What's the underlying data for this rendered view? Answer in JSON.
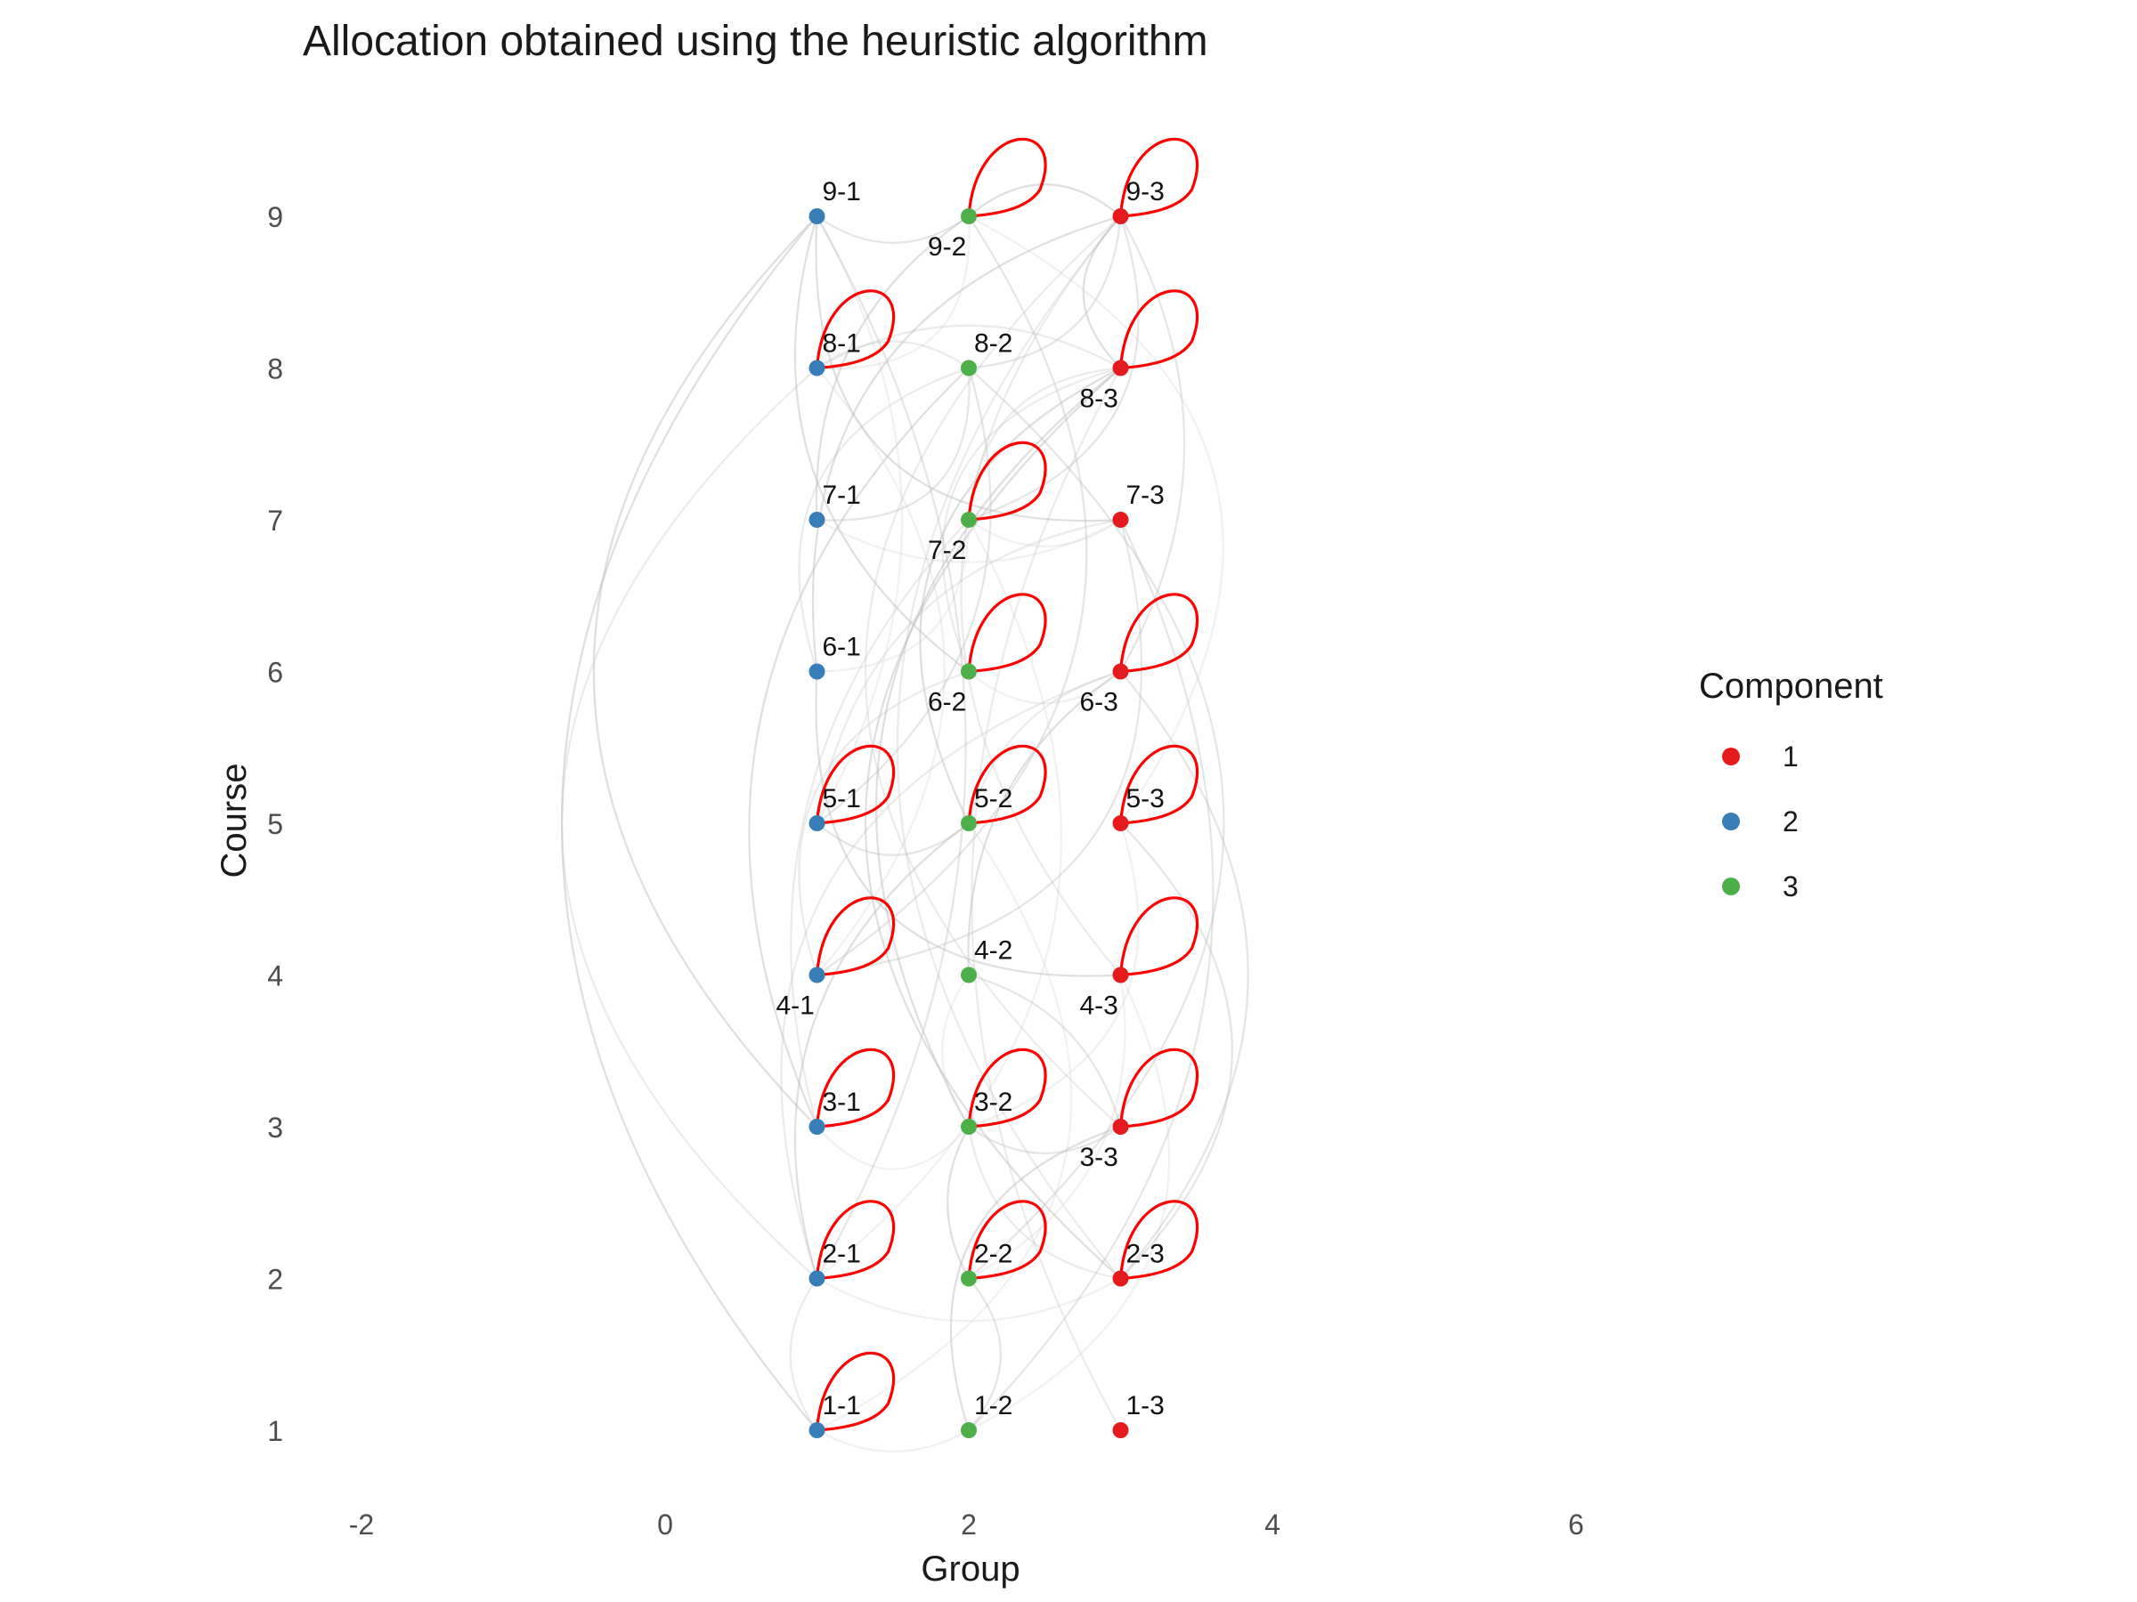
{
  "title": "Allocation obtained using the heuristic algorithm",
  "x_axis": {
    "label": "Group",
    "ticks": [
      "-2",
      "0",
      "2",
      "4",
      "6"
    ],
    "tick_values": [
      -2,
      0,
      2,
      4,
      6
    ],
    "range": [
      -2.2,
      6.6
    ]
  },
  "y_axis": {
    "label": "Course",
    "ticks": [
      "1",
      "2",
      "3",
      "4",
      "5",
      "6",
      "7",
      "8",
      "9"
    ],
    "tick_values": [
      1,
      2,
      3,
      4,
      5,
      6,
      7,
      8,
      9
    ],
    "range": [
      0.7,
      9.6
    ]
  },
  "legend": {
    "title": "Component",
    "placement": "right",
    "items": [
      {
        "label": "1",
        "color": "#E41A1C"
      },
      {
        "label": "2",
        "color": "#377EB8"
      },
      {
        "label": "3",
        "color": "#4DAF4A"
      }
    ]
  },
  "colors": {
    "self_loop": "#FF0000",
    "edge": "#BDBDBD",
    "1": "#E41A1C",
    "2": "#377EB8",
    "3": "#4DAF4A"
  },
  "nodes": [
    {
      "id": "1-1",
      "x": 1,
      "y": 1,
      "component": "2",
      "label_pos": "above",
      "self_loop": true
    },
    {
      "id": "1-2",
      "x": 2,
      "y": 1,
      "component": "3",
      "label_pos": "above",
      "self_loop": false
    },
    {
      "id": "1-3",
      "x": 3,
      "y": 1,
      "component": "1",
      "label_pos": "above",
      "self_loop": false
    },
    {
      "id": "2-1",
      "x": 1,
      "y": 2,
      "component": "2",
      "label_pos": "above",
      "self_loop": true
    },
    {
      "id": "2-2",
      "x": 2,
      "y": 2,
      "component": "3",
      "label_pos": "above",
      "self_loop": true
    },
    {
      "id": "2-3",
      "x": 3,
      "y": 2,
      "component": "1",
      "label_pos": "above",
      "self_loop": true
    },
    {
      "id": "3-1",
      "x": 1,
      "y": 3,
      "component": "2",
      "label_pos": "above",
      "self_loop": true
    },
    {
      "id": "3-2",
      "x": 2,
      "y": 3,
      "component": "3",
      "label_pos": "above",
      "self_loop": true
    },
    {
      "id": "3-3",
      "x": 3,
      "y": 3,
      "component": "1",
      "label_pos": "below",
      "self_loop": true
    },
    {
      "id": "4-1",
      "x": 1,
      "y": 4,
      "component": "2",
      "label_pos": "below",
      "self_loop": true
    },
    {
      "id": "4-2",
      "x": 2,
      "y": 4,
      "component": "3",
      "label_pos": "above",
      "self_loop": false
    },
    {
      "id": "4-3",
      "x": 3,
      "y": 4,
      "component": "1",
      "label_pos": "below",
      "self_loop": true
    },
    {
      "id": "5-1",
      "x": 1,
      "y": 5,
      "component": "2",
      "label_pos": "above",
      "self_loop": true
    },
    {
      "id": "5-2",
      "x": 2,
      "y": 5,
      "component": "3",
      "label_pos": "above",
      "self_loop": true
    },
    {
      "id": "5-3",
      "x": 3,
      "y": 5,
      "component": "1",
      "label_pos": "above",
      "self_loop": true
    },
    {
      "id": "6-1",
      "x": 1,
      "y": 6,
      "component": "2",
      "label_pos": "above",
      "self_loop": false
    },
    {
      "id": "6-2",
      "x": 2,
      "y": 6,
      "component": "3",
      "label_pos": "below",
      "self_loop": true
    },
    {
      "id": "6-3",
      "x": 3,
      "y": 6,
      "component": "1",
      "label_pos": "below",
      "self_loop": true
    },
    {
      "id": "7-1",
      "x": 1,
      "y": 7,
      "component": "2",
      "label_pos": "above",
      "self_loop": false
    },
    {
      "id": "7-2",
      "x": 2,
      "y": 7,
      "component": "3",
      "label_pos": "below",
      "self_loop": true
    },
    {
      "id": "7-3",
      "x": 3,
      "y": 7,
      "component": "1",
      "label_pos": "above",
      "self_loop": false
    },
    {
      "id": "8-1",
      "x": 1,
      "y": 8,
      "component": "2",
      "label_pos": "above",
      "self_loop": true
    },
    {
      "id": "8-2",
      "x": 2,
      "y": 8,
      "component": "3",
      "label_pos": "above",
      "self_loop": false
    },
    {
      "id": "8-3",
      "x": 3,
      "y": 8,
      "component": "1",
      "label_pos": "below",
      "self_loop": true
    },
    {
      "id": "9-1",
      "x": 1,
      "y": 9,
      "component": "2",
      "label_pos": "above",
      "self_loop": false
    },
    {
      "id": "9-2",
      "x": 2,
      "y": 9,
      "component": "3",
      "label_pos": "below",
      "self_loop": true
    },
    {
      "id": "9-3",
      "x": 3,
      "y": 9,
      "component": "1",
      "label_pos": "above",
      "self_loop": true
    }
  ],
  "edges": [
    [
      "1-1",
      "1-2"
    ],
    [
      "1-1",
      "2-1"
    ],
    [
      "1-2",
      "2-2"
    ],
    [
      "1-2",
      "3-3"
    ],
    [
      "1-1",
      "5-2"
    ],
    [
      "1-3",
      "8-3"
    ],
    [
      "1-2",
      "7-3"
    ],
    [
      "1-1",
      "9-1"
    ],
    [
      "1-2",
      "4-3"
    ],
    [
      "2-1",
      "8-1"
    ],
    [
      "2-1",
      "9-1"
    ],
    [
      "2-1",
      "5-2"
    ],
    [
      "2-1",
      "7-2"
    ],
    [
      "2-1",
      "6-3"
    ],
    [
      "2-2",
      "8-2"
    ],
    [
      "2-2",
      "3-2"
    ],
    [
      "2-2",
      "4-3"
    ],
    [
      "2-3",
      "9-3"
    ],
    [
      "2-3",
      "5-3"
    ],
    [
      "2-3",
      "8-3"
    ],
    [
      "2-1",
      "2-3"
    ],
    [
      "2-3",
      "3-2"
    ],
    [
      "2-3",
      "6-3"
    ],
    [
      "3-1",
      "9-1"
    ],
    [
      "3-1",
      "3-2"
    ],
    [
      "3-1",
      "7-2"
    ],
    [
      "3-2",
      "3-3"
    ],
    [
      "3-2",
      "8-3"
    ],
    [
      "3-2",
      "5-3"
    ],
    [
      "3-3",
      "9-3"
    ],
    [
      "3-3",
      "4-2"
    ],
    [
      "3-1",
      "8-2"
    ],
    [
      "4-1",
      "8-1"
    ],
    [
      "4-1",
      "6-2"
    ],
    [
      "4-1",
      "7-3"
    ],
    [
      "4-2",
      "6-3"
    ],
    [
      "4-2",
      "3-2"
    ],
    [
      "4-3",
      "9-3"
    ],
    [
      "4-1",
      "9-2"
    ],
    [
      "4-3",
      "6-1"
    ],
    [
      "5-1",
      "9-1"
    ],
    [
      "5-1",
      "7-3"
    ],
    [
      "5-1",
      "5-2"
    ],
    [
      "5-2",
      "8-3"
    ],
    [
      "5-3",
      "9-2"
    ],
    [
      "5-2",
      "6-3"
    ],
    [
      "5-1",
      "8-2"
    ],
    [
      "6-1",
      "9-3"
    ],
    [
      "6-1",
      "7-2"
    ],
    [
      "6-2",
      "8-3"
    ],
    [
      "6-3",
      "9-3"
    ],
    [
      "6-2",
      "9-1"
    ],
    [
      "6-2",
      "6-3"
    ],
    [
      "6-1",
      "8-2"
    ],
    [
      "7-1",
      "8-2"
    ],
    [
      "7-1",
      "9-2"
    ],
    [
      "7-2",
      "7-3"
    ],
    [
      "7-2",
      "8-3"
    ],
    [
      "7-2",
      "9-3"
    ],
    [
      "7-3",
      "9-1"
    ],
    [
      "7-1",
      "7-3"
    ],
    [
      "8-1",
      "8-2"
    ],
    [
      "8-2",
      "9-3"
    ],
    [
      "8-3",
      "9-3"
    ],
    [
      "8-1",
      "9-2"
    ],
    [
      "8-1",
      "8-3"
    ],
    [
      "9-1",
      "9-2"
    ],
    [
      "9-2",
      "9-3"
    ]
  ]
}
